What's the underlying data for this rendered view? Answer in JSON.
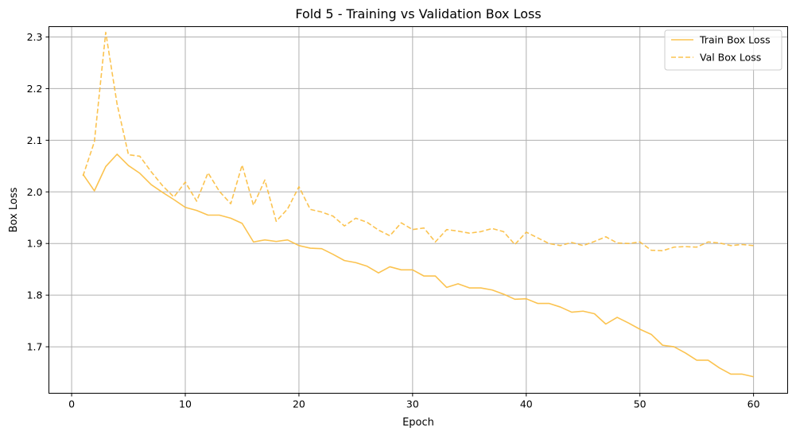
{
  "chart_data": {
    "type": "line",
    "title": "Fold 5 - Training vs Validation Box Loss",
    "xlabel": "Epoch",
    "ylabel": "Box Loss",
    "xlim": [
      -2,
      63
    ],
    "ylim": [
      1.61,
      2.32
    ],
    "xticks": [
      0,
      10,
      20,
      30,
      40,
      50,
      60
    ],
    "yticks": [
      1.7,
      1.8,
      1.9,
      2.0,
      2.1,
      2.2,
      2.3
    ],
    "ytick_labels": [
      "1.7",
      "1.8",
      "1.9",
      "2.0",
      "2.1",
      "2.2",
      "2.3"
    ],
    "grid": true,
    "legend_position": "top-right",
    "x": [
      1,
      2,
      3,
      4,
      5,
      6,
      7,
      8,
      9,
      10,
      11,
      12,
      13,
      14,
      15,
      16,
      17,
      18,
      19,
      20,
      21,
      22,
      23,
      24,
      25,
      26,
      27,
      28,
      29,
      30,
      31,
      32,
      33,
      34,
      35,
      36,
      37,
      38,
      39,
      40,
      41,
      42,
      43,
      44,
      45,
      46,
      47,
      48,
      49,
      50,
      51,
      52,
      53,
      54,
      55,
      56,
      57,
      58,
      59,
      60
    ],
    "series": [
      {
        "name": "Train Box Loss",
        "style": "solid",
        "color": "#fbbc3d",
        "values": [
          2.034,
          2.002,
          2.049,
          2.073,
          2.051,
          2.036,
          2.014,
          1.999,
          1.985,
          1.97,
          1.964,
          1.955,
          1.955,
          1.949,
          1.939,
          1.903,
          1.907,
          1.904,
          1.907,
          1.896,
          1.891,
          1.89,
          1.879,
          1.867,
          1.863,
          1.856,
          1.843,
          1.855,
          1.849,
          1.849,
          1.837,
          1.837,
          1.815,
          1.822,
          1.814,
          1.814,
          1.81,
          1.802,
          1.792,
          1.793,
          1.784,
          1.784,
          1.777,
          1.767,
          1.769,
          1.764,
          1.744,
          1.757,
          1.746,
          1.734,
          1.724,
          1.703,
          1.7,
          1.688,
          1.674,
          1.674,
          1.659,
          1.647,
          1.647,
          1.642
        ]
      },
      {
        "name": "Val Box Loss",
        "style": "dashed",
        "color": "#fbbc3d",
        "values": [
          2.031,
          2.097,
          2.309,
          2.17,
          2.072,
          2.069,
          2.039,
          2.012,
          1.99,
          2.019,
          1.982,
          2.037,
          2.001,
          1.977,
          2.052,
          1.974,
          2.023,
          1.943,
          1.967,
          2.01,
          1.966,
          1.961,
          1.953,
          1.934,
          1.949,
          1.941,
          1.926,
          1.915,
          1.94,
          1.927,
          1.93,
          1.903,
          1.927,
          1.924,
          1.92,
          1.923,
          1.929,
          1.923,
          1.898,
          1.922,
          1.911,
          1.9,
          1.896,
          1.902,
          1.896,
          1.904,
          1.913,
          1.901,
          1.9,
          1.903,
          1.887,
          1.886,
          1.893,
          1.894,
          1.893,
          1.903,
          1.901,
          1.896,
          1.898,
          1.896
        ]
      }
    ]
  }
}
